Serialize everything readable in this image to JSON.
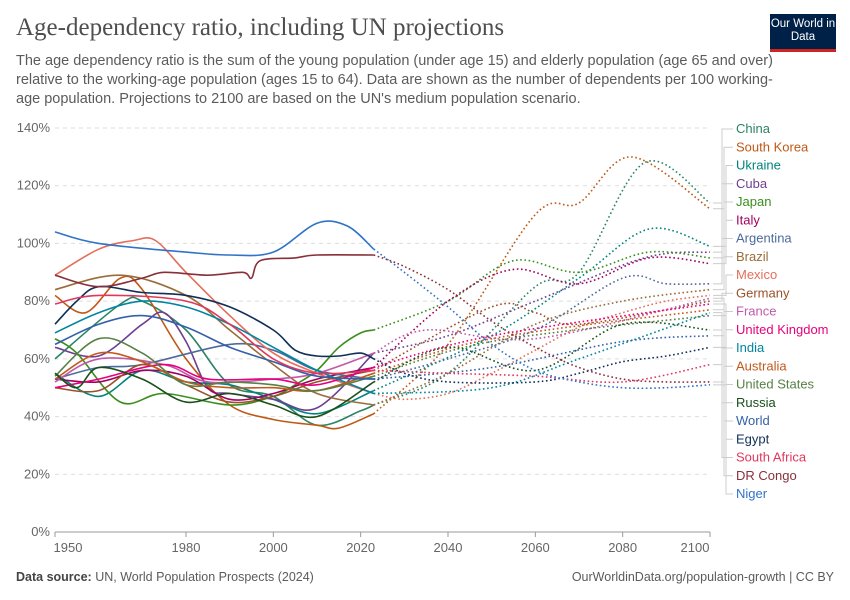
{
  "header": {
    "title": "Age-dependency ratio, including UN projections",
    "subtitle": "The age dependency ratio is the sum of the young population (under age 15) and elderly population (age 65 and over) relative to the working-age population (ages 15 to 64). Data are shown as the number of dependents per 100 working-age population. Projections to 2100 are based on the UN's medium population scenario.",
    "logo": "Our World in Data"
  },
  "footer": {
    "source_label": "Data source:",
    "source": "UN, World Population Prospects (2024)",
    "credit": "OurWorldinData.org/population-growth | CC BY"
  },
  "chart_data": {
    "type": "line",
    "xlim": [
      1950,
      2100
    ],
    "ylim": [
      0,
      140
    ],
    "x_ticks": [
      "1950",
      "1980",
      "2000",
      "2020",
      "2040",
      "2060",
      "2080",
      "2100"
    ],
    "y_ticks": [
      "0%",
      "20%",
      "40%",
      "60%",
      "80%",
      "100%",
      "120%",
      "140%"
    ],
    "grid": "horizontal dashed",
    "legend": "right, labels at line ends",
    "projection_start": 2023,
    "projection_style": "dotted",
    "series": [
      {
        "name": "China",
        "color": "#2c8465",
        "points": [
          [
            1950,
            60
          ],
          [
            1965,
            79
          ],
          [
            1970,
            80
          ],
          [
            1980,
            70
          ],
          [
            1990,
            51
          ],
          [
            2000,
            47
          ],
          [
            2010,
            37
          ],
          [
            2020,
            42
          ],
          [
            2023,
            44
          ],
          [
            2040,
            55
          ],
          [
            2060,
            85
          ],
          [
            2070,
            90
          ],
          [
            2085,
            128
          ],
          [
            2100,
            114
          ]
        ]
      },
      {
        "name": "South Korea",
        "color": "#be5915",
        "points": [
          [
            1950,
            82
          ],
          [
            1957,
            76
          ],
          [
            1965,
            88
          ],
          [
            1970,
            84
          ],
          [
            1980,
            60
          ],
          [
            1990,
            44
          ],
          [
            2000,
            39
          ],
          [
            2010,
            37
          ],
          [
            2015,
            36
          ],
          [
            2023,
            41
          ],
          [
            2040,
            65
          ],
          [
            2060,
            110
          ],
          [
            2070,
            114
          ],
          [
            2082,
            130
          ],
          [
            2100,
            112
          ]
        ]
      },
      {
        "name": "Ukraine",
        "color": "#00847e",
        "points": [
          [
            1950,
            55
          ],
          [
            1960,
            47
          ],
          [
            1970,
            56
          ],
          [
            1980,
            52
          ],
          [
            1990,
            51
          ],
          [
            2000,
            46
          ],
          [
            2010,
            41
          ],
          [
            2023,
            49
          ],
          [
            2050,
            68
          ],
          [
            2070,
            88
          ],
          [
            2086,
            105
          ],
          [
            2100,
            99
          ]
        ]
      },
      {
        "name": "Cuba",
        "color": "#6d3e91",
        "points": [
          [
            1950,
            64
          ],
          [
            1960,
            61
          ],
          [
            1970,
            72
          ],
          [
            1975,
            76
          ],
          [
            1980,
            66
          ],
          [
            1985,
            50
          ],
          [
            1990,
            48
          ],
          [
            2000,
            46
          ],
          [
            2010,
            43
          ],
          [
            2023,
            62
          ],
          [
            2040,
            68
          ],
          [
            2060,
            80
          ],
          [
            2085,
            95
          ],
          [
            2100,
            97
          ]
        ]
      },
      {
        "name": "Japan",
        "color": "#3a8e1e",
        "points": [
          [
            1950,
            67
          ],
          [
            1955,
            62
          ],
          [
            1965,
            45
          ],
          [
            1975,
            48
          ],
          [
            1990,
            44
          ],
          [
            2000,
            47
          ],
          [
            2005,
            51
          ],
          [
            2010,
            56
          ],
          [
            2015,
            64
          ],
          [
            2020,
            69
          ],
          [
            2023,
            70
          ],
          [
            2040,
            80
          ],
          [
            2055,
            94
          ],
          [
            2070,
            90
          ],
          [
            2086,
            97
          ],
          [
            2100,
            95
          ]
        ]
      },
      {
        "name": "Italy",
        "color": "#a2005f",
        "points": [
          [
            1950,
            53
          ],
          [
            1960,
            52
          ],
          [
            1970,
            56
          ],
          [
            1980,
            54
          ],
          [
            1990,
            46
          ],
          [
            2000,
            48
          ],
          [
            2010,
            53
          ],
          [
            2023,
            57
          ],
          [
            2040,
            80
          ],
          [
            2055,
            91
          ],
          [
            2070,
            86
          ],
          [
            2086,
            95
          ],
          [
            2100,
            93
          ]
        ]
      },
      {
        "name": "Argentina",
        "color": "#4c6a9c",
        "points": [
          [
            1950,
            53
          ],
          [
            1960,
            57
          ],
          [
            1970,
            58
          ],
          [
            1990,
            65
          ],
          [
            2000,
            63
          ],
          [
            2010,
            56
          ],
          [
            2023,
            53
          ],
          [
            2040,
            60
          ],
          [
            2060,
            70
          ],
          [
            2080,
            88
          ],
          [
            2090,
            86
          ],
          [
            2100,
            86
          ]
        ]
      },
      {
        "name": "Brazil",
        "color": "#996d39",
        "points": [
          [
            1950,
            84
          ],
          [
            1965,
            89
          ],
          [
            1980,
            82
          ],
          [
            1990,
            70
          ],
          [
            2000,
            58
          ],
          [
            2010,
            48
          ],
          [
            2023,
            44
          ],
          [
            2040,
            55
          ],
          [
            2060,
            72
          ],
          [
            2080,
            80
          ],
          [
            2100,
            84
          ]
        ]
      },
      {
        "name": "Mexico",
        "color": "#e56e5a",
        "points": [
          [
            1950,
            89
          ],
          [
            1960,
            98
          ],
          [
            1968,
            101
          ],
          [
            1973,
            101
          ],
          [
            1980,
            90
          ],
          [
            1990,
            75
          ],
          [
            2000,
            62
          ],
          [
            2010,
            55
          ],
          [
            2023,
            48
          ],
          [
            2030,
            46
          ],
          [
            2040,
            48
          ],
          [
            2050,
            55
          ],
          [
            2060,
            63
          ],
          [
            2070,
            71
          ],
          [
            2080,
            76
          ],
          [
            2090,
            80
          ],
          [
            2100,
            82
          ]
        ]
      },
      {
        "name": "Germany",
        "color": "#9a5129",
        "points": [
          [
            1950,
            50
          ],
          [
            1960,
            49
          ],
          [
            1970,
            58
          ],
          [
            1980,
            51
          ],
          [
            1990,
            45
          ],
          [
            2000,
            47
          ],
          [
            2010,
            52
          ],
          [
            2023,
            56
          ],
          [
            2050,
            78
          ],
          [
            2060,
            76
          ],
          [
            2070,
            72
          ],
          [
            2100,
            80
          ]
        ]
      },
      {
        "name": "France",
        "color": "#c05aa8",
        "points": [
          [
            1950,
            52
          ],
          [
            1960,
            60
          ],
          [
            1975,
            58
          ],
          [
            1985,
            52
          ],
          [
            2000,
            53
          ],
          [
            2010,
            55
          ],
          [
            2023,
            62
          ],
          [
            2035,
            70
          ],
          [
            2060,
            67
          ],
          [
            2100,
            81
          ]
        ]
      },
      {
        "name": "United Kingdom",
        "color": "#e6007e",
        "points": [
          [
            1950,
            50
          ],
          [
            1960,
            53
          ],
          [
            1975,
            58
          ],
          [
            1985,
            53
          ],
          [
            2000,
            53
          ],
          [
            2010,
            51
          ],
          [
            2023,
            57
          ],
          [
            2050,
            68
          ],
          [
            2100,
            79
          ]
        ]
      },
      {
        "name": "India",
        "color": "#00869f",
        "points": [
          [
            1950,
            69
          ],
          [
            1960,
            76
          ],
          [
            1970,
            80
          ],
          [
            1980,
            78
          ],
          [
            1990,
            72
          ],
          [
            2000,
            64
          ],
          [
            2010,
            56
          ],
          [
            2023,
            48
          ],
          [
            2050,
            50
          ],
          [
            2070,
            60
          ],
          [
            2100,
            76
          ]
        ]
      },
      {
        "name": "Australia",
        "color": "#c15a1b",
        "points": [
          [
            1950,
            53
          ],
          [
            1960,
            62
          ],
          [
            1970,
            59
          ],
          [
            1980,
            52
          ],
          [
            1990,
            50
          ],
          [
            2000,
            50
          ],
          [
            2010,
            49
          ],
          [
            2023,
            55
          ],
          [
            2050,
            67
          ],
          [
            2100,
            77
          ]
        ]
      },
      {
        "name": "United States",
        "color": "#578145",
        "points": [
          [
            1950,
            54
          ],
          [
            1960,
            67
          ],
          [
            1970,
            62
          ],
          [
            1980,
            51
          ],
          [
            1990,
            52
          ],
          [
            2000,
            51
          ],
          [
            2010,
            49
          ],
          [
            2023,
            54
          ],
          [
            2050,
            66
          ],
          [
            2100,
            75
          ]
        ]
      },
      {
        "name": "Russia",
        "color": "#1a4f1a",
        "points": [
          [
            1950,
            55
          ],
          [
            1955,
            50
          ],
          [
            1960,
            57
          ],
          [
            1970,
            53
          ],
          [
            1980,
            45
          ],
          [
            1990,
            48
          ],
          [
            2000,
            44
          ],
          [
            2010,
            40
          ],
          [
            2023,
            52
          ],
          [
            2040,
            64
          ],
          [
            2060,
            56
          ],
          [
            2080,
            72
          ],
          [
            2100,
            70
          ]
        ]
      },
      {
        "name": "World",
        "color": "#3360a9",
        "points": [
          [
            1950,
            65
          ],
          [
            1960,
            72
          ],
          [
            1970,
            75
          ],
          [
            1980,
            71
          ],
          [
            1990,
            64
          ],
          [
            2000,
            59
          ],
          [
            2010,
            54
          ],
          [
            2023,
            53
          ],
          [
            2050,
            57
          ],
          [
            2080,
            66
          ],
          [
            2100,
            68
          ]
        ]
      },
      {
        "name": "Egypt",
        "color": "#0f2f57",
        "points": [
          [
            1950,
            72
          ],
          [
            1955,
            80
          ],
          [
            1960,
            85
          ],
          [
            1970,
            83
          ],
          [
            1980,
            82
          ],
          [
            1990,
            78
          ],
          [
            2000,
            70
          ],
          [
            2005,
            63
          ],
          [
            2010,
            61
          ],
          [
            2015,
            61
          ],
          [
            2020,
            62
          ],
          [
            2023,
            60
          ],
          [
            2030,
            55
          ],
          [
            2040,
            52
          ],
          [
            2060,
            52
          ],
          [
            2070,
            55
          ],
          [
            2080,
            59
          ],
          [
            2090,
            61
          ],
          [
            2100,
            64
          ]
        ]
      },
      {
        "name": "South Africa",
        "color": "#e0375c",
        "points": [
          [
            1950,
            79
          ],
          [
            1960,
            82
          ],
          [
            1980,
            80
          ],
          [
            1990,
            72
          ],
          [
            2000,
            60
          ],
          [
            2010,
            55
          ],
          [
            2023,
            56
          ],
          [
            2040,
            55
          ],
          [
            2060,
            54
          ],
          [
            2080,
            52
          ],
          [
            2100,
            58
          ]
        ]
      },
      {
        "name": "DR Congo",
        "color": "#883039",
        "points": [
          [
            1950,
            89
          ],
          [
            1960,
            85
          ],
          [
            1970,
            88
          ],
          [
            1975,
            90
          ],
          [
            1985,
            89
          ],
          [
            1993,
            90
          ],
          [
            1995,
            88
          ],
          [
            1997,
            94
          ],
          [
            2005,
            95
          ],
          [
            2010,
            96
          ],
          [
            2023,
            96
          ],
          [
            2030,
            92
          ],
          [
            2040,
            84
          ],
          [
            2050,
            73
          ],
          [
            2060,
            64
          ],
          [
            2070,
            57
          ],
          [
            2080,
            53
          ],
          [
            2090,
            52
          ],
          [
            2100,
            52
          ]
        ]
      },
      {
        "name": "Niger",
        "color": "#3073c8",
        "points": [
          [
            1950,
            104
          ],
          [
            1960,
            100
          ],
          [
            1980,
            97
          ],
          [
            1990,
            96
          ],
          [
            2000,
            97
          ],
          [
            2010,
            107
          ],
          [
            2017,
            106
          ],
          [
            2023,
            98
          ],
          [
            2030,
            90
          ],
          [
            2040,
            78
          ],
          [
            2050,
            65
          ],
          [
            2060,
            56
          ],
          [
            2070,
            52
          ],
          [
            2080,
            50
          ],
          [
            2090,
            50
          ],
          [
            2100,
            51
          ]
        ]
      }
    ]
  }
}
